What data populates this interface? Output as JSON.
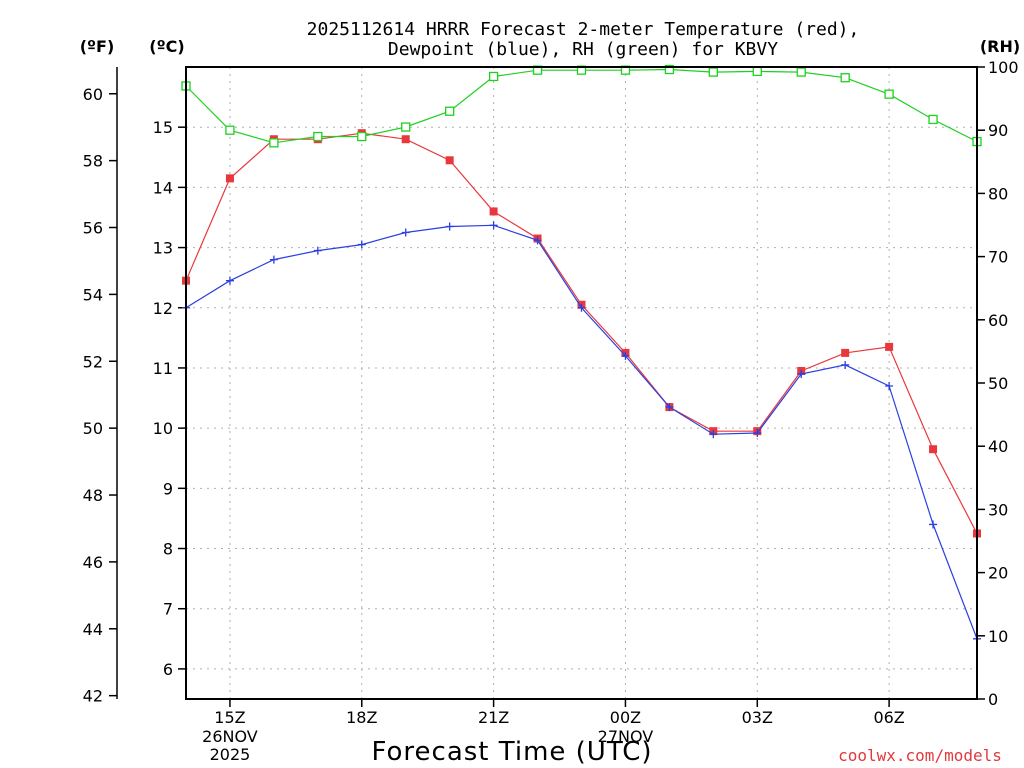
{
  "chart_data": {
    "type": "line",
    "title_line1": "2025112614 HRRR Forecast 2-meter Temperature (red),",
    "title_line2": "Dewpoint (blue), RH (green) for KBVY",
    "xlabel": "Forecast Time (UTC)",
    "credit": "coolwx.com/models",
    "unit_f": "(ºF)",
    "unit_c": "(ºC)",
    "unit_rh": "(RH)",
    "x_range_hours": [
      0,
      18
    ],
    "c_range": [
      5.5,
      16.0
    ],
    "f_range": [
      41.9,
      60.8
    ],
    "rh_range": [
      0,
      100
    ],
    "x_ticks": [
      {
        "x": 1,
        "label": "15Z",
        "sub1": "26NOV",
        "sub2": "2025"
      },
      {
        "x": 4,
        "label": "18Z",
        "sub1": "",
        "sub2": ""
      },
      {
        "x": 7,
        "label": "21Z",
        "sub1": "",
        "sub2": ""
      },
      {
        "x": 10,
        "label": "00Z",
        "sub1": "27NOV",
        "sub2": ""
      },
      {
        "x": 13,
        "label": "03Z",
        "sub1": "",
        "sub2": ""
      },
      {
        "x": 16,
        "label": "06Z",
        "sub1": "",
        "sub2": ""
      }
    ],
    "c_ticks": [
      6,
      7,
      8,
      9,
      10,
      11,
      12,
      13,
      14,
      15
    ],
    "f_ticks": [
      42,
      44,
      46,
      48,
      50,
      52,
      54,
      56,
      58,
      60
    ],
    "rh_ticks": [
      0,
      10,
      20,
      30,
      40,
      50,
      60,
      70,
      80,
      90,
      100
    ],
    "x": [
      0,
      1,
      2,
      3,
      4,
      5,
      6,
      7,
      8,
      9,
      10,
      11,
      12,
      13,
      14,
      15,
      16,
      17,
      18
    ],
    "series": [
      {
        "name": "Temperature",
        "unit": "C",
        "color": "#e8383d",
        "marker": "filled-square",
        "values": [
          12.45,
          14.15,
          14.8,
          14.8,
          14.9,
          14.8,
          14.45,
          13.6,
          13.15,
          12.05,
          11.25,
          10.35,
          9.95,
          9.95,
          10.95,
          11.25,
          11.35,
          9.65,
          8.25
        ]
      },
      {
        "name": "Dewpoint",
        "unit": "C",
        "color": "#2a3fe0",
        "marker": "plus",
        "values": [
          12.0,
          12.45,
          12.8,
          12.95,
          13.05,
          13.25,
          13.35,
          13.37,
          13.12,
          12.0,
          11.2,
          10.35,
          9.9,
          9.92,
          10.9,
          11.05,
          10.7,
          8.4,
          6.5
        ]
      },
      {
        "name": "RH",
        "unit": "%",
        "color": "#1ed11e",
        "marker": "open-square",
        "values": [
          97.0,
          90.0,
          88.0,
          89.0,
          89.0,
          90.5,
          93.0,
          98.5,
          99.5,
          99.5,
          99.5,
          99.6,
          99.2,
          99.3,
          99.2,
          98.3,
          95.7,
          91.7,
          88.2
        ]
      }
    ]
  }
}
